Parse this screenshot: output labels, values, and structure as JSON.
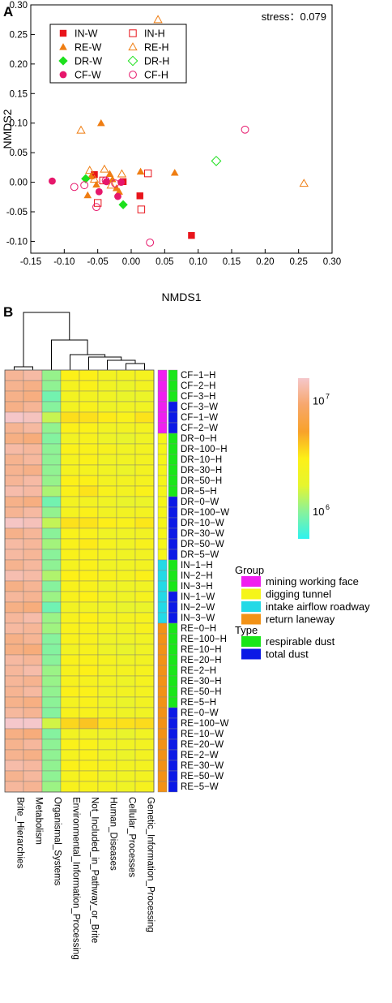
{
  "panels": {
    "a": {
      "label": "A"
    },
    "b": {
      "label": "B"
    }
  },
  "chart_data": [
    {
      "type": "scatter",
      "panel": "A",
      "annotation": "stress：0.079",
      "xlabel": "NMDS1",
      "ylabel": "NMDS2",
      "xlim": [
        -0.15,
        0.3
      ],
      "ylim": [
        -0.12,
        0.3
      ],
      "xticks": [
        -0.15,
        -0.1,
        -0.05,
        0.0,
        0.05,
        0.1,
        0.15,
        0.2,
        0.25,
        0.3
      ],
      "xtick_labels": [
        "-0.15",
        "-0.10",
        "-0.05",
        "0.00",
        "0.05",
        "0.10",
        "0.15",
        "0.20",
        "0.25",
        "0.30"
      ],
      "yticks": [
        -0.1,
        -0.05,
        0.0,
        0.05,
        0.1,
        0.15,
        0.2,
        0.25,
        0.3
      ],
      "ytick_labels": [
        "-0.10",
        "-0.05",
        "0.00",
        "0.05",
        "0.10",
        "0.15",
        "0.20",
        "0.25",
        "0.30"
      ],
      "grid": false,
      "legend_position": "top-left",
      "series": [
        {
          "name": "IN-W",
          "marker": "square",
          "fill": "solid",
          "color": "#e8141b",
          "points": [
            [
              -0.055,
              0.013
            ],
            [
              -0.012,
              0.001
            ],
            [
              0.013,
              -0.023
            ],
            [
              0.09,
              -0.09
            ]
          ]
        },
        {
          "name": "IN-H",
          "marker": "square",
          "fill": "open",
          "color": "#e8141b",
          "points": [
            [
              -0.05,
              -0.035
            ],
            [
              -0.042,
              0.003
            ],
            [
              0.015,
              -0.046
            ],
            [
              0.025,
              0.015
            ]
          ]
        },
        {
          "name": "RE-W",
          "marker": "triangle",
          "fill": "solid",
          "color": "#ef7d12",
          "points": [
            [
              -0.045,
              0.1
            ],
            [
              -0.06,
              0.01
            ],
            [
              -0.065,
              -0.022
            ],
            [
              -0.052,
              -0.004
            ],
            [
              -0.032,
              0.014
            ],
            [
              -0.028,
              0.005
            ],
            [
              -0.022,
              -0.01
            ],
            [
              -0.018,
              -0.016
            ],
            [
              0.014,
              0.018
            ],
            [
              0.065,
              0.016
            ]
          ]
        },
        {
          "name": "RE-H",
          "marker": "triangle",
          "fill": "open",
          "color": "#ef7d12",
          "points": [
            [
              -0.075,
              0.088
            ],
            [
              -0.062,
              0.02
            ],
            [
              -0.055,
              0.005
            ],
            [
              -0.04,
              0.022
            ],
            [
              -0.03,
              -0.005
            ],
            [
              -0.014,
              0.014
            ],
            [
              0.04,
              0.275
            ],
            [
              0.258,
              -0.002
            ]
          ]
        },
        {
          "name": "DR-W",
          "marker": "diamond",
          "fill": "solid",
          "color": "#1de01d",
          "points": [
            [
              -0.068,
              0.006
            ],
            [
              -0.012,
              -0.038
            ]
          ]
        },
        {
          "name": "DR-H",
          "marker": "diamond",
          "fill": "open",
          "color": "#1de01d",
          "points": [
            [
              0.127,
              0.036
            ]
          ]
        },
        {
          "name": "CF-W",
          "marker": "circle",
          "fill": "solid",
          "color": "#e6176b",
          "points": [
            [
              -0.118,
              0.002
            ],
            [
              -0.048,
              -0.016
            ],
            [
              -0.037,
              0.001
            ],
            [
              -0.02,
              -0.024
            ],
            [
              -0.015,
              0.0
            ]
          ]
        },
        {
          "name": "CF-H",
          "marker": "circle",
          "fill": "open",
          "color": "#e6176b",
          "points": [
            [
              -0.085,
              -0.008
            ],
            [
              -0.07,
              -0.005
            ],
            [
              -0.052,
              -0.042
            ],
            [
              -0.038,
              0.003
            ],
            [
              -0.024,
              -0.002
            ],
            [
              0.028,
              -0.102
            ],
            [
              0.17,
              0.089
            ]
          ]
        }
      ]
    },
    {
      "type": "heatmap",
      "panel": "B",
      "columns": [
        "Brite_Hierarchies",
        "Metabolism",
        "Organismal_Systems",
        "Environmental_Information_Processing",
        "Not_Included_in_Pathway_or_Brite",
        "Human_Diseases",
        "Cellular_Processes",
        "Genetic_Information_Processing"
      ],
      "rows": [
        "CF-1-H",
        "CF-2-H",
        "CF-3-H",
        "CF-3-W",
        "CF-1-W",
        "CF-2-W",
        "DR-0-H",
        "DR-100-H",
        "DR-10-H",
        "DR-30-H",
        "DR-50-H",
        "DR-5-H",
        "DR-0-W",
        "DR-100-W",
        "DR-10-W",
        "DR-30-W",
        "DR-50-W",
        "DR-5-W",
        "IN-1-H",
        "IN-2-H",
        "IN-3-H",
        "IN-1-W",
        "IN-2-W",
        "IN-3-W",
        "RE-0-H",
        "RE-100-H",
        "RE-10-H",
        "RE-20-H",
        "RE-2-H",
        "RE-30-H",
        "RE-50-H",
        "RE-5-H",
        "RE-0-W",
        "RE-100-W",
        "RE-10-W",
        "RE-20-W",
        "RE-2-W",
        "RE-30-W",
        "RE-50-W",
        "RE-5-W"
      ],
      "row_labels": [
        "CF−1−H",
        "CF−2−H",
        "CF−3−H",
        "CF−3−W",
        "CF−1−W",
        "CF−2−W",
        "DR−0−H",
        "DR−100−H",
        "DR−10−H",
        "DR−30−H",
        "DR−50−H",
        "DR−5−H",
        "DR−0−W",
        "DR−100−W",
        "DR−10−W",
        "DR−30−W",
        "DR−50−W",
        "DR−5−W",
        "IN−1−H",
        "IN−2−H",
        "IN−3−H",
        "IN−1−W",
        "IN−2−W",
        "IN−3−W",
        "RE−0−H",
        "RE−100−H",
        "RE−10−H",
        "RE−20−H",
        "RE−2−H",
        "RE−30−H",
        "RE−50−H",
        "RE−5−H",
        "RE−0−W",
        "RE−100−W",
        "RE−10−W",
        "RE−20−W",
        "RE−2−W",
        "RE−30−W",
        "RE−50−W",
        "RE−5−W"
      ],
      "column_base_log10": [
        7.03,
        7.03,
        5.98,
        6.38,
        6.4,
        6.33,
        6.3,
        6.34
      ],
      "row_offset_log10": [
        0.06,
        0.02,
        -0.02,
        0.01,
        0.15,
        0.05,
        -0.01,
        0.05,
        0.03,
        0.01,
        0.06,
        0.09,
        -0.02,
        0.04,
        0.14,
        0.03,
        0.07,
        0.04,
        0.03,
        0.09,
        0.02,
        0.05,
        -0.03,
        0.06,
        0.05,
        0.02,
        -0.01,
        0.04,
        0.06,
        0.03,
        0.05,
        0.01,
        0.03,
        0.2,
        -0.02,
        0.04,
        0.02,
        0.06,
        0.03,
        0.04
      ],
      "groups": [
        "mining",
        "mining",
        "mining",
        "mining",
        "mining",
        "mining",
        "digging",
        "digging",
        "digging",
        "digging",
        "digging",
        "digging",
        "digging",
        "digging",
        "digging",
        "digging",
        "digging",
        "digging",
        "intake",
        "intake",
        "intake",
        "intake",
        "intake",
        "intake",
        "return",
        "return",
        "return",
        "return",
        "return",
        "return",
        "return",
        "return",
        "return",
        "return",
        "return",
        "return",
        "return",
        "return",
        "return",
        "return"
      ],
      "types": [
        "respirable",
        "respirable",
        "respirable",
        "total",
        "total",
        "total",
        "respirable",
        "respirable",
        "respirable",
        "respirable",
        "respirable",
        "respirable",
        "total",
        "total",
        "total",
        "total",
        "total",
        "total",
        "respirable",
        "respirable",
        "respirable",
        "total",
        "total",
        "total",
        "respirable",
        "respirable",
        "respirable",
        "respirable",
        "respirable",
        "respirable",
        "respirable",
        "respirable",
        "total",
        "total",
        "total",
        "total",
        "total",
        "total",
        "total",
        "total"
      ],
      "group_legend_title": "Group",
      "group_legend": [
        {
          "key": "mining",
          "label": "mining working face",
          "color": "#f01ff0"
        },
        {
          "key": "digging",
          "label": "digging tunnel",
          "color": "#f5f519"
        },
        {
          "key": "intake",
          "label": "intake airflow roadway",
          "color": "#24d9e6"
        },
        {
          "key": "return",
          "label": "return laneway",
          "color": "#f29217"
        }
      ],
      "type_legend_title": "Type",
      "type_legend": [
        {
          "key": "respirable",
          "label": "respirable dust",
          "color": "#19e619"
        },
        {
          "key": "total",
          "label": "total dust",
          "color": "#0b19e6"
        }
      ],
      "colorbar": {
        "log10_range": [
          5.75,
          7.2
        ],
        "tick_label_major": "10",
        "ticks": [
          {
            "log10": 7,
            "exponent": "7"
          },
          {
            "log10": 6,
            "exponent": "6"
          }
        ],
        "colors": [
          "#2ef2ef",
          "#88f29c",
          "#e6f52e",
          "#fdf017",
          "#f8a22a",
          "#f7a76b",
          "#f5c7cb"
        ]
      }
    }
  ]
}
